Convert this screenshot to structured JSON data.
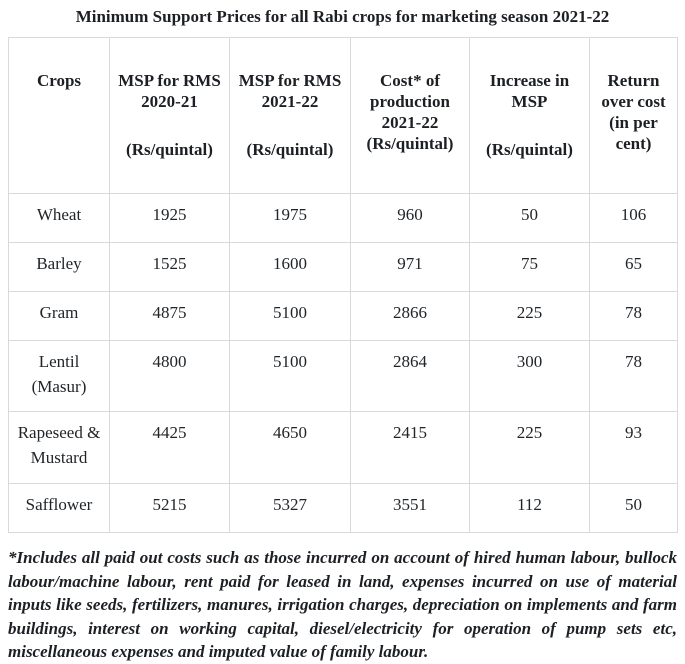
{
  "title": "Minimum Support Prices for all Rabi crops for marketing season 2021-22",
  "table": {
    "headers": [
      {
        "main": "Crops",
        "sub": ""
      },
      {
        "main": "MSP for RMS\n2020-21",
        "sub": "(Rs/quintal)"
      },
      {
        "main": "MSP for RMS\n2021-22",
        "sub": "(Rs/quintal)"
      },
      {
        "main": "Cost* of\nproduction\n2021-22\n(Rs/quintal)",
        "sub": ""
      },
      {
        "main": "Increase in\nMSP",
        "sub": "(Rs/quintal)"
      },
      {
        "main": "Return\nover cost\n(in per\ncent)",
        "sub": ""
      }
    ],
    "rows": [
      [
        "Wheat",
        "1925",
        "1975",
        "960",
        "50",
        "106"
      ],
      [
        "Barley",
        "1525",
        "1600",
        "971",
        "75",
        "65"
      ],
      [
        "Gram",
        "4875",
        "5100",
        "2866",
        "225",
        "78"
      ],
      [
        "Lentil\n(Masur)",
        "4800",
        "5100",
        "2864",
        "300",
        "78"
      ],
      [
        "Rapeseed &\nMustard",
        "4425",
        "4650",
        "2415",
        "225",
        "93"
      ],
      [
        "Safflower",
        "5215",
        "5327",
        "3551",
        "112",
        "50"
      ]
    ]
  },
  "footnote": "*Includes all paid out costs such as those incurred on account of hired human labour, bullock labour/machine labour, rent paid for leased in land, expenses incurred on use of material inputs like seeds, fertilizers, manures, irrigation charges, depreciation on implements and farm buildings, interest on working capital, diesel/electricity for operation of pump sets etc, miscellaneous expenses and imputed value of family labour."
}
